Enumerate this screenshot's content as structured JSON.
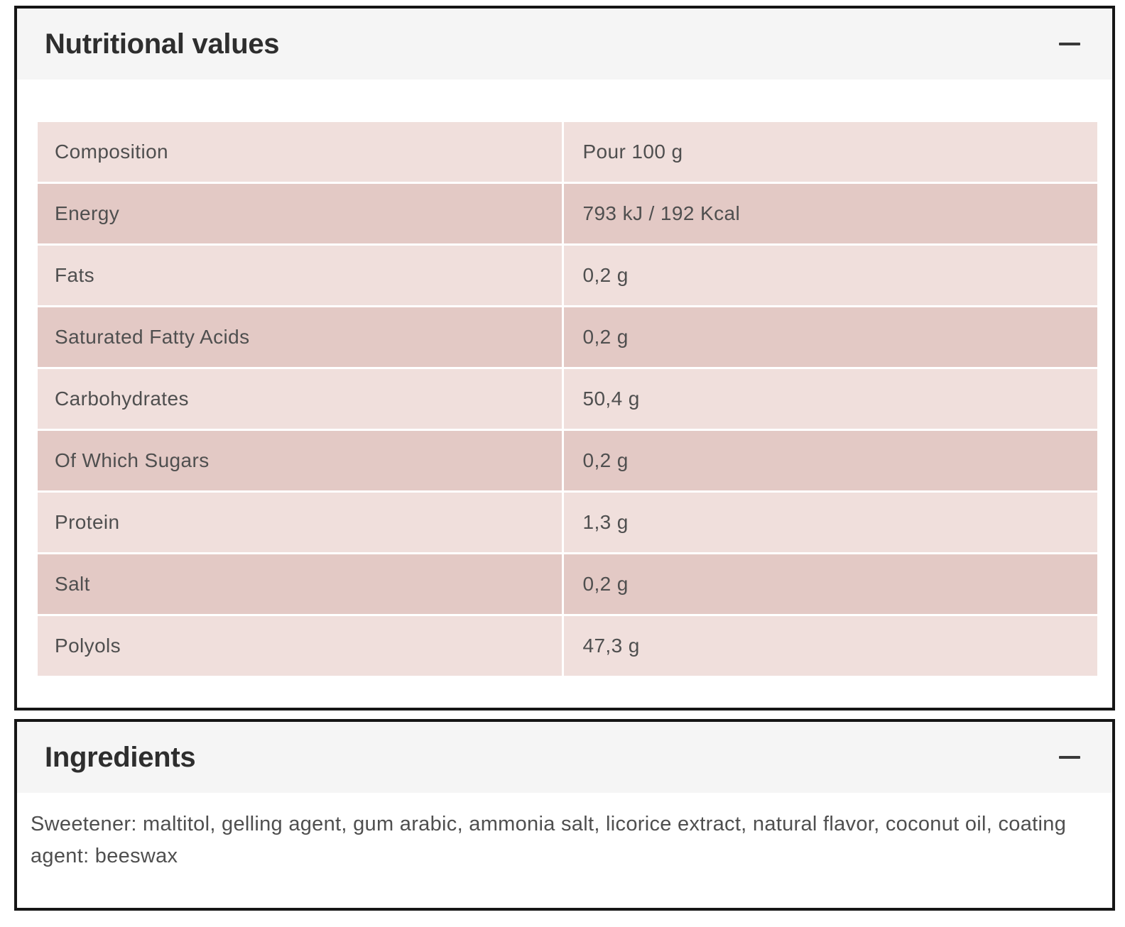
{
  "colors": {
    "row_light": "#f0dfdc",
    "row_dark": "#e3c9c5",
    "section_header_bg": "#f5f5f5",
    "card_border": "#161616",
    "title_text": "#2e2e2e",
    "body_text": "#4f4f4f"
  },
  "nutritional_values": {
    "title": "Nutritional values",
    "rows": [
      {
        "label": "Composition",
        "value": "Pour 100 g"
      },
      {
        "label": "Energy",
        "value": "793 kJ / 192 Kcal"
      },
      {
        "label": "Fats",
        "value": "0,2 g"
      },
      {
        "label": "Saturated Fatty Acids",
        "value": "0,2 g"
      },
      {
        "label": "Carbohydrates",
        "value": "50,4 g"
      },
      {
        "label": "Of Which Sugars",
        "value": "0,2 g"
      },
      {
        "label": "Protein",
        "value": "1,3 g"
      },
      {
        "label": "Salt",
        "value": "0,2 g"
      },
      {
        "label": "Polyols",
        "value": "47,3 g"
      }
    ]
  },
  "ingredients": {
    "title": "Ingredients",
    "text": "Sweetener: maltitol, gelling agent, gum arabic, ammonia salt, licorice extract, natural flavor, coconut oil, coating agent: beeswax"
  }
}
